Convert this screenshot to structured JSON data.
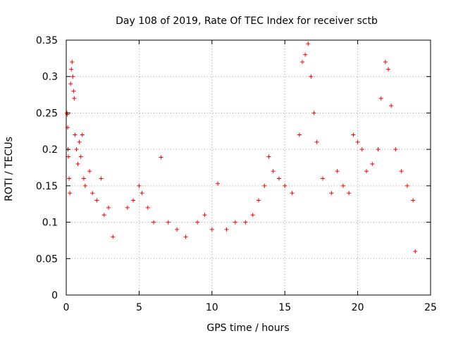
{
  "chart_data": {
    "type": "scatter",
    "title": "Day 108 of 2019, Rate Of TEC Index for receiver sctb",
    "xlabel": "GPS time / hours",
    "ylabel": "ROTI / TECUs",
    "xlim": [
      0,
      25
    ],
    "ylim": [
      0,
      0.35
    ],
    "x_ticks": [
      0,
      5,
      10,
      15,
      20,
      25
    ],
    "x_tick_labels": [
      "0",
      "5",
      "10",
      "15",
      "20",
      "25"
    ],
    "y_ticks": [
      0,
      0.05,
      0.1,
      0.15,
      0.2,
      0.25,
      0.3,
      0.35
    ],
    "y_tick_labels": [
      "0",
      "0.05",
      "0.1",
      "0.15",
      "0.2",
      "0.25",
      "0.3",
      "0.35"
    ],
    "grid": true,
    "marker": "+",
    "color": "#ff0000",
    "series": [
      {
        "name": "ROTI",
        "points": [
          [
            0.05,
            0.25
          ],
          [
            0.08,
            0.248
          ],
          [
            0.1,
            0.23
          ],
          [
            0.12,
            0.2
          ],
          [
            0.15,
            0.19
          ],
          [
            0.2,
            0.16
          ],
          [
            0.25,
            0.14
          ],
          [
            0.3,
            0.29
          ],
          [
            0.35,
            0.31
          ],
          [
            0.4,
            0.32
          ],
          [
            0.45,
            0.3
          ],
          [
            0.5,
            0.28
          ],
          [
            0.55,
            0.27
          ],
          [
            0.6,
            0.22
          ],
          [
            0.7,
            0.2
          ],
          [
            0.8,
            0.18
          ],
          [
            0.9,
            0.21
          ],
          [
            1.0,
            0.19
          ],
          [
            1.1,
            0.22
          ],
          [
            1.2,
            0.16
          ],
          [
            1.3,
            0.15
          ],
          [
            1.6,
            0.17
          ],
          [
            1.8,
            0.14
          ],
          [
            2.1,
            0.13
          ],
          [
            2.4,
            0.16
          ],
          [
            2.6,
            0.11
          ],
          [
            2.9,
            0.12
          ],
          [
            3.2,
            0.08
          ],
          [
            4.2,
            0.12
          ],
          [
            4.6,
            0.13
          ],
          [
            5.0,
            0.15
          ],
          [
            5.2,
            0.14
          ],
          [
            5.6,
            0.12
          ],
          [
            6.0,
            0.1
          ],
          [
            6.5,
            0.189
          ],
          [
            7.0,
            0.1
          ],
          [
            7.6,
            0.09
          ],
          [
            8.2,
            0.08
          ],
          [
            9.0,
            0.1
          ],
          [
            9.5,
            0.11
          ],
          [
            10.0,
            0.09
          ],
          [
            10.4,
            0.153
          ],
          [
            11.0,
            0.09
          ],
          [
            11.6,
            0.1
          ],
          [
            12.3,
            0.1
          ],
          [
            12.8,
            0.11
          ],
          [
            13.2,
            0.13
          ],
          [
            13.6,
            0.15
          ],
          [
            13.9,
            0.19
          ],
          [
            14.2,
            0.17
          ],
          [
            14.6,
            0.16
          ],
          [
            15.0,
            0.15
          ],
          [
            15.5,
            0.14
          ],
          [
            16.0,
            0.22
          ],
          [
            16.2,
            0.32
          ],
          [
            16.4,
            0.33
          ],
          [
            16.6,
            0.345
          ],
          [
            16.8,
            0.3
          ],
          [
            17.0,
            0.25
          ],
          [
            17.2,
            0.21
          ],
          [
            17.6,
            0.16
          ],
          [
            18.2,
            0.14
          ],
          [
            18.6,
            0.17
          ],
          [
            19.0,
            0.15
          ],
          [
            19.4,
            0.14
          ],
          [
            19.7,
            0.22
          ],
          [
            20.0,
            0.21
          ],
          [
            20.3,
            0.2
          ],
          [
            20.6,
            0.17
          ],
          [
            21.0,
            0.18
          ],
          [
            21.4,
            0.2
          ],
          [
            21.6,
            0.27
          ],
          [
            21.9,
            0.32
          ],
          [
            22.1,
            0.31
          ],
          [
            22.3,
            0.26
          ],
          [
            22.6,
            0.2
          ],
          [
            23.0,
            0.17
          ],
          [
            23.4,
            0.15
          ],
          [
            23.8,
            0.13
          ],
          [
            23.95,
            0.06
          ]
        ]
      }
    ]
  }
}
